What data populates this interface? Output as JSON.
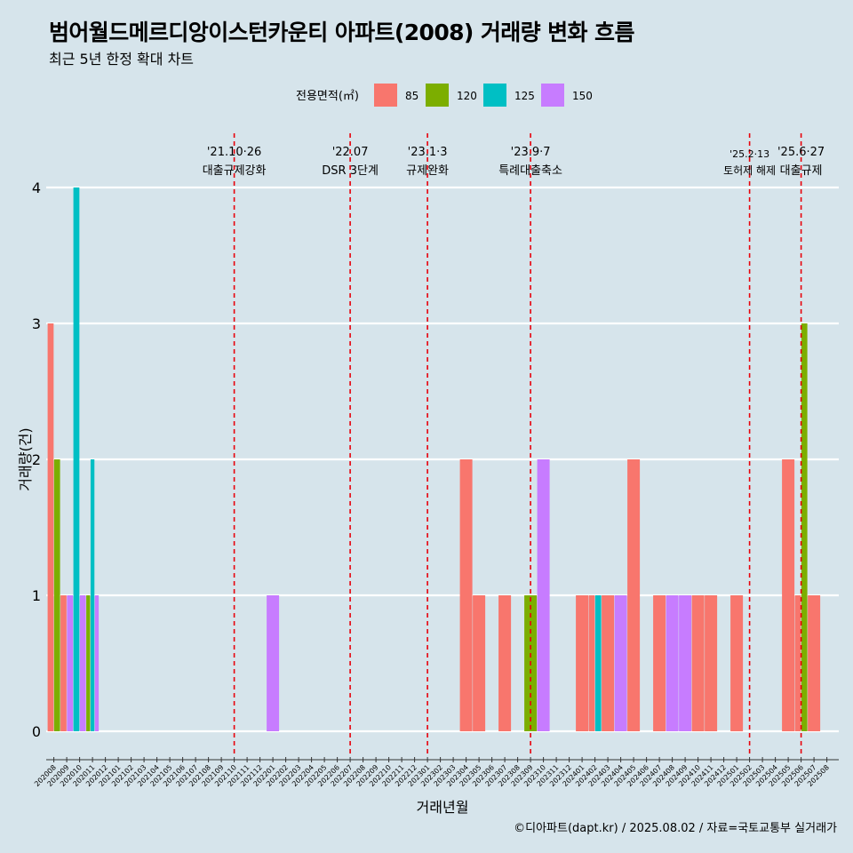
{
  "title": "범어월드메르디앙이스턴카운티 아파트(2008) 거래량 변화 흐름",
  "subtitle": "최근 5년 한정 확대 차트",
  "caption": "©디아파트(dapt.kr) / 2025.08.02 / 자료=국토교통부 실거래가",
  "chart_data": {
    "type": "bar",
    "xlabel": "거래년월",
    "ylabel": "거래량(건)",
    "ylim": [
      0,
      4
    ],
    "y_ticks": [
      0,
      1,
      2,
      3,
      4
    ],
    "grid": true,
    "legend": {
      "title": "전용면적(㎡)",
      "position": "top"
    },
    "categories": [
      "202008",
      "202009",
      "202010",
      "202011",
      "202012",
      "202101",
      "202102",
      "202103",
      "202104",
      "202105",
      "202106",
      "202107",
      "202108",
      "202109",
      "202110",
      "202111",
      "202112",
      "202201",
      "202202",
      "202203",
      "202204",
      "202205",
      "202206",
      "202207",
      "202208",
      "202209",
      "202210",
      "202211",
      "202212",
      "202301",
      "202302",
      "202303",
      "202304",
      "202305",
      "202306",
      "202307",
      "202308",
      "202309",
      "202310",
      "202311",
      "202312",
      "202401",
      "202402",
      "202403",
      "202404",
      "202405",
      "202406",
      "202407",
      "202408",
      "202409",
      "202410",
      "202411",
      "202412",
      "202501",
      "202502",
      "202503",
      "202504",
      "202505",
      "202506",
      "202507",
      "202508"
    ],
    "series": [
      {
        "name": "85",
        "color": "#F8766D",
        "points": [
          [
            "202008",
            3
          ],
          [
            "202009",
            1
          ],
          [
            "202304",
            2
          ],
          [
            "202305",
            1
          ],
          [
            "202307",
            1
          ],
          [
            "202401",
            1
          ],
          [
            "202402",
            1
          ],
          [
            "202403",
            1
          ],
          [
            "202405",
            2
          ],
          [
            "202407",
            1
          ],
          [
            "202410",
            1
          ],
          [
            "202411",
            1
          ],
          [
            "202501",
            1
          ],
          [
            "202505",
            2
          ],
          [
            "202506",
            1
          ],
          [
            "202507",
            1
          ]
        ]
      },
      {
        "name": "120",
        "color": "#7CAE00",
        "points": [
          [
            "202008",
            2
          ],
          [
            "202011",
            1
          ],
          [
            "202309",
            1
          ],
          [
            "202506",
            3
          ]
        ]
      },
      {
        "name": "125",
        "color": "#00BFC4",
        "points": [
          [
            "202010",
            4
          ],
          [
            "202011",
            2
          ],
          [
            "202402",
            1
          ]
        ]
      },
      {
        "name": "150",
        "color": "#C77CFF",
        "points": [
          [
            "202009",
            1
          ],
          [
            "202010",
            1
          ],
          [
            "202011",
            1
          ],
          [
            "202201",
            1
          ],
          [
            "202310",
            2
          ],
          [
            "202404",
            1
          ],
          [
            "202408",
            1
          ],
          [
            "202409",
            1
          ]
        ]
      }
    ],
    "events": [
      {
        "month": "202110",
        "date": "'21.10·26",
        "label": "대출규제강화"
      },
      {
        "month": "202207",
        "date": "'22.07",
        "label": "DSR 3단계"
      },
      {
        "month": "202301",
        "date": "'23.1·3",
        "label": "규제완화"
      },
      {
        "month": "202309",
        "date": "'23.9·7",
        "label": "특례대출축소"
      },
      {
        "month": "202502",
        "date": "'25.2·13",
        "label": "토허제 해제"
      },
      {
        "month": "202506",
        "date": "'25.6·27",
        "label": "대출규제"
      }
    ]
  }
}
